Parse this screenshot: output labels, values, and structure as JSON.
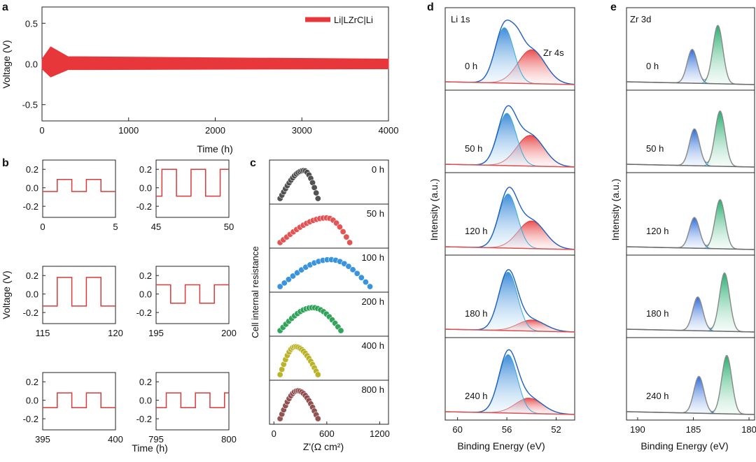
{
  "panel_letters": {
    "a": "a",
    "b": "b",
    "c": "c",
    "d": "d",
    "e": "e"
  },
  "colors": {
    "red": "#e8373b",
    "redline": "#d93a3a",
    "blue": "#1f73c8",
    "cyan": "#36a9dc",
    "green": "#22b070",
    "pink": "#ef5a5a",
    "base": "#6b6b6b"
  },
  "chart_data": [
    {
      "panel": "a",
      "type": "line",
      "title": "",
      "xlabel": "Time (h)",
      "ylabel": "Voltage (V)",
      "xlim": [
        0,
        4000
      ],
      "ylim": [
        -0.7,
        0.7
      ],
      "xticks": [
        "0",
        "1000",
        "2000",
        "3000",
        "4000"
      ],
      "yticks": [
        "0.5",
        "0.0",
        "-0.5"
      ],
      "legend": "Li|LZrC|Li",
      "series": [
        {
          "name": "Li|LZrC|Li",
          "x": [
            0,
            100,
            300,
            4000
          ],
          "y_upper": [
            0.06,
            0.21,
            0.09,
            0.06
          ],
          "y_lower": [
            -0.06,
            -0.16,
            -0.07,
            -0.06
          ]
        }
      ]
    },
    {
      "panel": "b",
      "type": "line",
      "xlabel": "Time (h)",
      "ylabel": "Voltage (V)",
      "yticks": [
        "0.2",
        "0.0",
        "-0.2"
      ],
      "subplots": [
        {
          "xlim": [
            0,
            5
          ],
          "xticks": [
            "0",
            "5"
          ],
          "high": 0.09,
          "low": -0.04,
          "period": 2.0,
          "first_rise": 1.0
        },
        {
          "xlim": [
            45,
            50
          ],
          "xticks": [
            "45",
            "50"
          ],
          "high": 0.2,
          "low": -0.09,
          "period": 2.0,
          "first_rise": 45.4
        },
        {
          "xlim": [
            115,
            120
          ],
          "xticks": [
            "115",
            "120"
          ],
          "high": 0.18,
          "low": -0.13,
          "period": 2.0,
          "first_rise": 116.0
        },
        {
          "xlim": [
            195,
            200
          ],
          "xticks": [
            "195",
            "200"
          ],
          "high": 0.1,
          "low": -0.1,
          "period": 2.0,
          "first_rise": 195.0
        },
        {
          "xlim": [
            395,
            400
          ],
          "xticks": [
            "395",
            "400"
          ],
          "high": 0.08,
          "low": -0.08,
          "period": 2.0,
          "first_rise": 396.0
        },
        {
          "xlim": [
            795,
            800
          ],
          "xticks": [
            "795",
            "800"
          ],
          "high": 0.08,
          "low": -0.08,
          "period": 2.0,
          "first_rise": 795.7
        }
      ]
    },
    {
      "panel": "c",
      "type": "scatter",
      "xlabel": "Z'(Ω cm²)",
      "ylabel": "Cell internal resistance",
      "xlim": [
        -50,
        1300
      ],
      "xticks": [
        "0",
        "600",
        "1200"
      ],
      "series": [
        {
          "name": "0 h",
          "color": "#4a4a4a",
          "start": 70,
          "end": 500,
          "apex": 340,
          "height": 0.85
        },
        {
          "name": "50 h",
          "color": "#e44b4b",
          "start": 70,
          "end": 860,
          "apex": 600,
          "height": 0.75
        },
        {
          "name": "100 h",
          "color": "#2f8fde",
          "start": 70,
          "end": 1090,
          "apex": 640,
          "height": 0.82
        },
        {
          "name": "200 h",
          "color": "#2aa055",
          "start": 70,
          "end": 760,
          "apex": 440,
          "height": 0.7
        },
        {
          "name": "400 h",
          "color": "#b8b020",
          "start": 70,
          "end": 500,
          "apex": 240,
          "height": 0.85
        },
        {
          "name": "800 h",
          "color": "#8d4a4a",
          "start": 70,
          "end": 500,
          "apex": 270,
          "height": 0.85
        }
      ]
    },
    {
      "panel": "d",
      "type": "line",
      "title": "Li 1s",
      "annotation": "Zr 4s",
      "xlabel": "Binding Energy (eV)",
      "ylabel": "Intensity (a.u.)",
      "xlim": [
        61,
        50.5
      ],
      "xticks": [
        "60",
        "56",
        "52"
      ],
      "series": [
        {
          "name": "0 h",
          "li_center": 56.2,
          "li_height": 0.9,
          "zr_center": 54.0,
          "zr_height": 0.55,
          "shoulder": 55.1
        },
        {
          "name": "50 h",
          "li_center": 56.0,
          "li_height": 0.85,
          "zr_center": 54.1,
          "zr_height": 0.5
        },
        {
          "name": "120 h",
          "li_center": 55.9,
          "li_height": 0.88,
          "zr_center": 54.0,
          "zr_height": 0.45
        },
        {
          "name": "180 h",
          "li_center": 55.9,
          "li_height": 0.95,
          "zr_center": 54.0,
          "zr_height": 0.18
        },
        {
          "name": "240 h",
          "li_center": 55.9,
          "li_height": 0.95,
          "zr_center": 54.2,
          "zr_height": 0.25
        }
      ]
    },
    {
      "panel": "e",
      "type": "line",
      "title": "Zr 3d",
      "xlabel": "Binding Energy (eV)",
      "ylabel": "Intensity (a.u.)",
      "xlim": [
        191,
        179.5
      ],
      "xticks": [
        "190",
        "185",
        "180"
      ],
      "series": [
        {
          "name": "0 h",
          "d52_center": 185.1,
          "d52_height": 0.55,
          "d32_center": 182.8,
          "d32_height": 0.95
        },
        {
          "name": "50 h",
          "d52_center": 184.9,
          "d52_height": 0.6,
          "d32_center": 182.6,
          "d32_height": 0.9
        },
        {
          "name": "120 h",
          "d52_center": 184.9,
          "d52_height": 0.5,
          "d32_center": 182.6,
          "d32_height": 0.8
        },
        {
          "name": "180 h",
          "d52_center": 184.6,
          "d52_height": 0.55,
          "d32_center": 182.2,
          "d32_height": 0.95
        },
        {
          "name": "240 h",
          "d52_center": 184.5,
          "d52_height": 0.6,
          "d32_center": 182.0,
          "d32_height": 0.95
        }
      ]
    }
  ]
}
